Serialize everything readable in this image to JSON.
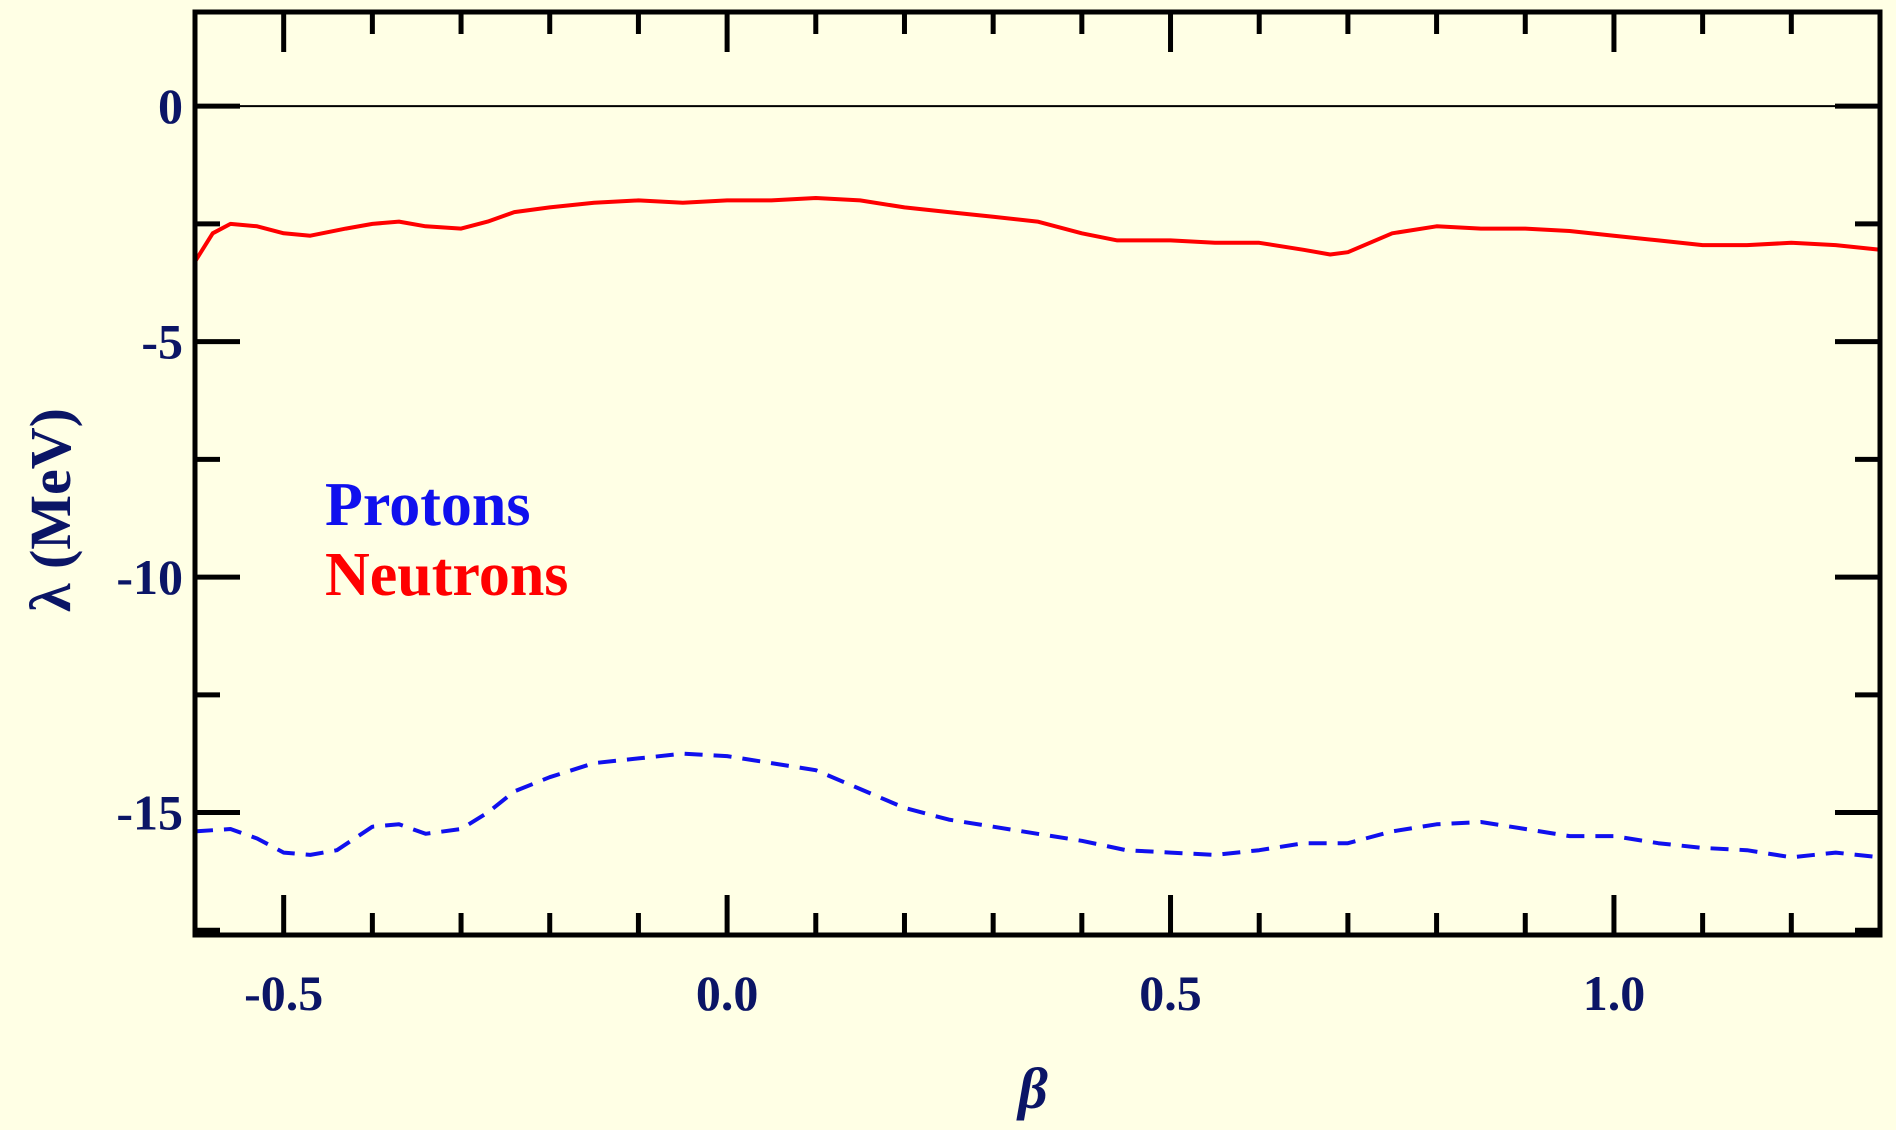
{
  "chart_data": {
    "type": "line",
    "title": "",
    "xlabel": "β",
    "ylabel": "λ (MeV)",
    "xlim": [
      -0.6,
      1.3
    ],
    "ylim": [
      -17.6,
      2.0
    ],
    "x_ticks": [
      -0.5,
      0.0,
      0.5,
      1.0
    ],
    "x_tick_labels": [
      "-0.5",
      "0.0",
      "0.5",
      "1.0"
    ],
    "y_ticks": [
      0,
      -5,
      -10,
      -15
    ],
    "y_tick_labels": [
      "0",
      "-5",
      "-10",
      "-15"
    ],
    "x_minor_step": 0.1,
    "y_minor_step": 2.5,
    "reference_line_y": 0,
    "grid": false,
    "legend_placement": "center-left",
    "series": [
      {
        "name": "Protons",
        "color": "#1010ee",
        "style": "dashed",
        "x": [
          -0.6,
          -0.56,
          -0.53,
          -0.5,
          -0.47,
          -0.44,
          -0.4,
          -0.37,
          -0.34,
          -0.3,
          -0.27,
          -0.24,
          -0.2,
          -0.15,
          -0.1,
          -0.05,
          0.0,
          0.05,
          0.1,
          0.15,
          0.2,
          0.25,
          0.3,
          0.35,
          0.4,
          0.45,
          0.5,
          0.55,
          0.6,
          0.65,
          0.7,
          0.75,
          0.8,
          0.85,
          0.9,
          0.95,
          1.0,
          1.05,
          1.1,
          1.15,
          1.2,
          1.25,
          1.3
        ],
        "y": [
          -15.4,
          -15.35,
          -15.55,
          -15.85,
          -15.9,
          -15.8,
          -15.3,
          -15.25,
          -15.45,
          -15.35,
          -15.0,
          -14.55,
          -14.25,
          -13.95,
          -13.85,
          -13.75,
          -13.8,
          -13.95,
          -14.1,
          -14.5,
          -14.9,
          -15.15,
          -15.3,
          -15.45,
          -15.6,
          -15.8,
          -15.85,
          -15.9,
          -15.8,
          -15.65,
          -15.65,
          -15.4,
          -15.25,
          -15.2,
          -15.35,
          -15.5,
          -15.5,
          -15.65,
          -15.75,
          -15.8,
          -15.95,
          -15.85,
          -15.95
        ]
      },
      {
        "name": "Neutrons",
        "color": "#ff0000",
        "style": "solid",
        "x": [
          -0.6,
          -0.58,
          -0.56,
          -0.53,
          -0.5,
          -0.47,
          -0.43,
          -0.4,
          -0.37,
          -0.34,
          -0.3,
          -0.27,
          -0.24,
          -0.2,
          -0.15,
          -0.1,
          -0.05,
          0.0,
          0.05,
          0.1,
          0.15,
          0.2,
          0.25,
          0.3,
          0.35,
          0.4,
          0.44,
          0.5,
          0.55,
          0.6,
          0.65,
          0.68,
          0.7,
          0.75,
          0.8,
          0.85,
          0.9,
          0.95,
          1.0,
          1.05,
          1.1,
          1.15,
          1.2,
          1.25,
          1.3
        ],
        "y": [
          -3.3,
          -2.7,
          -2.5,
          -2.55,
          -2.7,
          -2.75,
          -2.6,
          -2.5,
          -2.45,
          -2.55,
          -2.6,
          -2.45,
          -2.25,
          -2.15,
          -2.05,
          -2.0,
          -2.05,
          -2.0,
          -2.0,
          -1.95,
          -2.0,
          -2.15,
          -2.25,
          -2.35,
          -2.45,
          -2.7,
          -2.85,
          -2.85,
          -2.9,
          -2.9,
          -3.05,
          -3.15,
          -3.1,
          -2.7,
          -2.55,
          -2.6,
          -2.6,
          -2.65,
          -2.75,
          -2.85,
          -2.95,
          -2.95,
          -2.9,
          -2.95,
          -3.05
        ]
      }
    ]
  }
}
